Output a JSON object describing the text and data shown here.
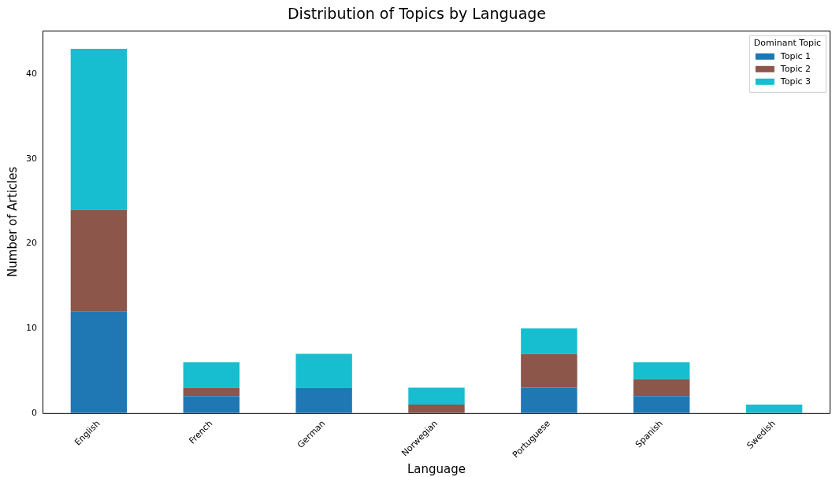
{
  "chart_data": {
    "type": "bar",
    "stacked": true,
    "title": "Distribution of Topics by Language",
    "xlabel": "Language",
    "ylabel": "Number of Articles",
    "legend_title": "Dominant Topic",
    "legend": "top right",
    "grid": false,
    "categories": [
      "English",
      "French",
      "German",
      "Norwegian",
      "Portuguese",
      "Spanish",
      "Swedish"
    ],
    "series": [
      {
        "name": "Topic 1",
        "color": "#1f77b4",
        "values": [
          12,
          2,
          3,
          0,
          3,
          2,
          0
        ]
      },
      {
        "name": "Topic 2",
        "color": "#8c564b",
        "values": [
          12,
          1,
          0,
          1,
          4,
          2,
          0
        ]
      },
      {
        "name": "Topic 3",
        "color": "#17becf",
        "values": [
          19,
          3,
          4,
          2,
          3,
          2,
          1
        ]
      }
    ],
    "ylim": [
      0,
      45.15
    ],
    "yticks": [
      0,
      10,
      20,
      30,
      40
    ]
  }
}
